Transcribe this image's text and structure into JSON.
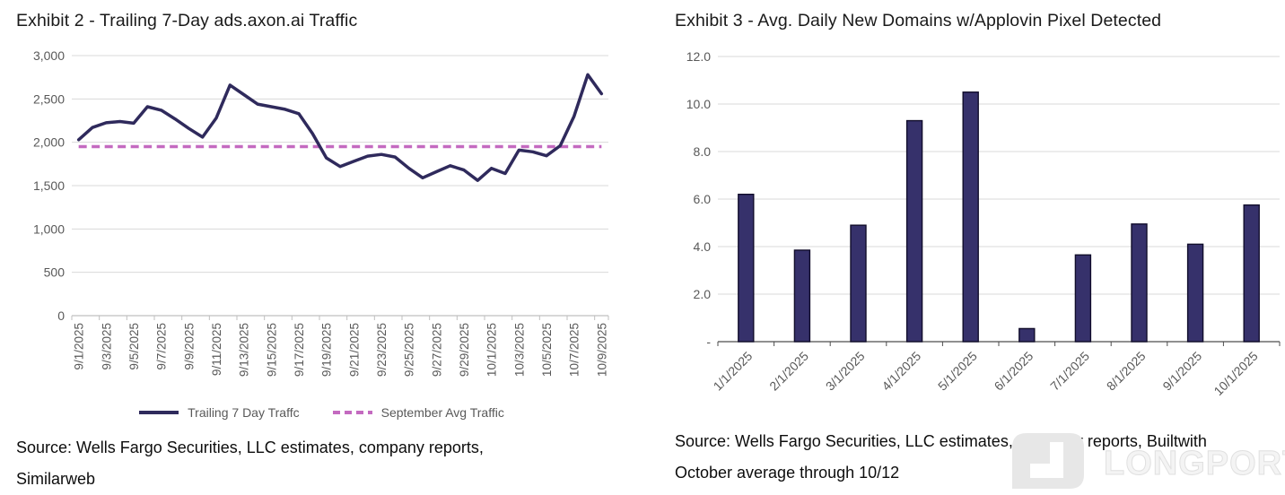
{
  "chart_data": [
    {
      "type": "line",
      "title": "Exhibit 2 - Trailing 7-Day ads.axon.ai Traffic",
      "x": [
        "9/1/2025",
        "9/2/2025",
        "9/3/2025",
        "9/4/2025",
        "9/5/2025",
        "9/6/2025",
        "9/7/2025",
        "9/8/2025",
        "9/9/2025",
        "9/10/2025",
        "9/11/2025",
        "9/12/2025",
        "9/13/2025",
        "9/14/2025",
        "9/15/2025",
        "9/16/2025",
        "9/17/2025",
        "9/18/2025",
        "9/19/2025",
        "9/20/2025",
        "9/21/2025",
        "9/22/2025",
        "9/23/2025",
        "9/24/2025",
        "9/25/2025",
        "9/26/2025",
        "9/27/2025",
        "9/28/2025",
        "9/29/2025",
        "9/30/2025",
        "10/1/2025",
        "10/2/2025",
        "10/3/2025",
        "10/4/2025",
        "10/5/2025",
        "10/6/2025",
        "10/7/2025",
        "10/8/2025",
        "10/9/2025"
      ],
      "x_label_every": 2,
      "series": [
        {
          "name": "Trailing 7 Day Traffc",
          "kind": "line",
          "color": "#2F2A5C",
          "values": [
            2030,
            2170,
            2225,
            2240,
            2220,
            2410,
            2370,
            2270,
            2160,
            2060,
            2280,
            2660,
            2550,
            2440,
            2410,
            2380,
            2330,
            2100,
            1820,
            1720,
            1780,
            1840,
            1860,
            1830,
            1700,
            1590,
            1660,
            1730,
            1680,
            1560,
            1700,
            1640,
            1910,
            1890,
            1845,
            1960,
            2300,
            2780,
            2560
          ]
        },
        {
          "name": "September Avg Traffic",
          "kind": "constant-line",
          "style": "dashed",
          "color": "#C46AC0",
          "value": 1950
        }
      ],
      "ylim": [
        0,
        3000
      ],
      "yticks": [
        {
          "value": 0,
          "label": "0"
        },
        {
          "value": 500,
          "label": "500"
        },
        {
          "value": 1000,
          "label": "1,000"
        },
        {
          "value": 1500,
          "label": "1,500"
        },
        {
          "value": 2000,
          "label": "2,000"
        },
        {
          "value": 2500,
          "label": "2,500"
        },
        {
          "value": 3000,
          "label": "3,000"
        }
      ],
      "grid": true,
      "legend_position": "bottom",
      "source": [
        "Source: Wells Fargo Securities, LLC estimates, company reports,",
        "Similarweb"
      ]
    },
    {
      "type": "bar",
      "title": "Exhibit 3 - Avg. Daily New Domains w/Applovin Pixel Detected",
      "categories": [
        "1/1/2025",
        "2/1/2025",
        "3/1/2025",
        "4/1/2025",
        "5/1/2025",
        "6/1/2025",
        "7/1/2025",
        "8/1/2025",
        "9/1/2025",
        "10/1/2025"
      ],
      "values": [
        6.2,
        3.85,
        4.9,
        9.3,
        10.5,
        0.55,
        3.65,
        4.95,
        4.1,
        5.75
      ],
      "ylim": [
        0,
        12
      ],
      "yticks": [
        {
          "value": 0,
          "label": "-"
        },
        {
          "value": 2,
          "label": "2.0"
        },
        {
          "value": 4,
          "label": "4.0"
        },
        {
          "value": 6,
          "label": "6.0"
        },
        {
          "value": 8,
          "label": "8.0"
        },
        {
          "value": 10,
          "label": "10.0"
        },
        {
          "value": 12,
          "label": "12.0"
        }
      ],
      "bar_color": "#36316B",
      "bar_border": "#110D2B",
      "grid": true,
      "source": [
        "Source: Wells Fargo Securities, LLC estimates, company reports, Builtwith",
        "October average through 10/12"
      ]
    }
  ],
  "colors": {
    "grid": "#D9D9D9",
    "axis": "#BFBFBF",
    "axis_dark": "#4D4D4D",
    "tick_text": "#595959",
    "title_text": "#1A1A1A",
    "source_text": "#0D0D0D",
    "watermark": "#E4E4E4"
  },
  "watermark": {
    "text": "LONGPORT"
  }
}
